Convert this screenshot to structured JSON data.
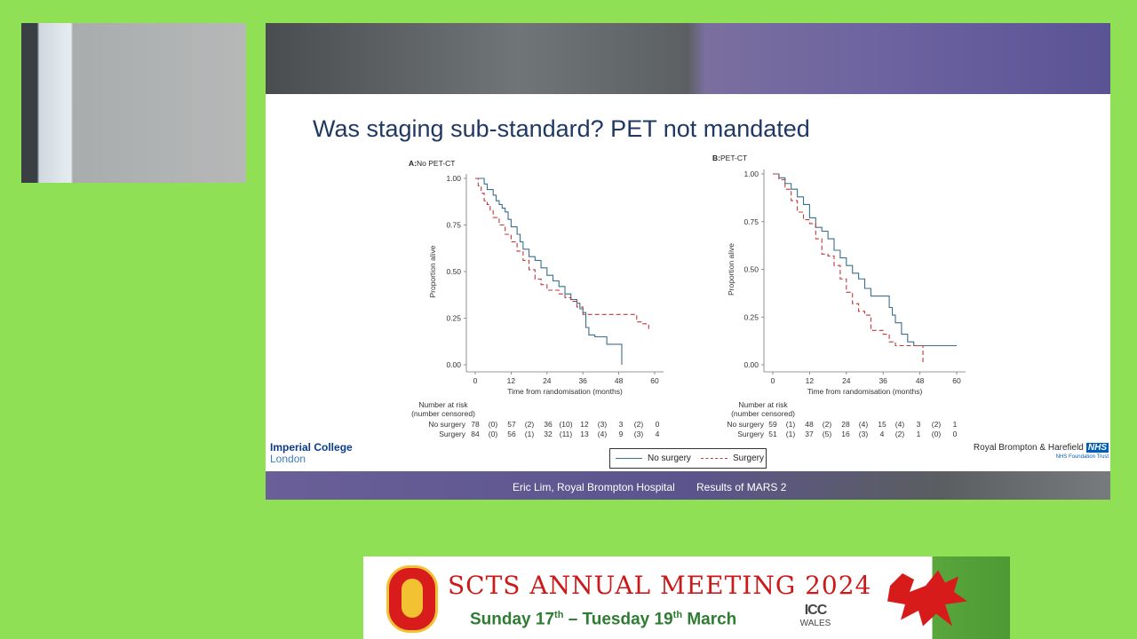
{
  "slide": {
    "title": "Was staging sub-standard? PET not mandated",
    "footer_presenter": "Eric Lim, Royal Brompton Hospital",
    "footer_title": "Results of MARS 2",
    "logo_left": [
      "Imperial College",
      "London"
    ],
    "logo_right": {
      "name": "Royal Brompton & Harefield",
      "badge": "NHS",
      "sub": "NHS Foundation Trust"
    }
  },
  "legend": [
    {
      "label": "No surgery",
      "color": "#3a6f8f",
      "style": "solid"
    },
    {
      "label": "Surgery",
      "color": "#c0393b",
      "style": "dashed"
    }
  ],
  "risk_table_label": [
    "Number at risk",
    "(number censored)"
  ],
  "chart_data": [
    {
      "type": "line",
      "title_letter": "A",
      "title": "No PET-CT",
      "xlabel": "Time from randomisation (months)",
      "ylabel": "Proportion alive",
      "xlim": [
        0,
        60
      ],
      "ylim": [
        0,
        1
      ],
      "xticks": [
        "0",
        "12",
        "24",
        "36",
        "48",
        "60"
      ],
      "yticks": [
        "0.00",
        "0.25",
        "0.50",
        "0.75",
        "1.00"
      ],
      "series": [
        {
          "name": "No surgery",
          "color": "#3a6f8f",
          "style": "solid",
          "x": [
            0,
            1,
            3,
            4,
            6,
            7,
            8,
            9,
            10,
            11,
            12,
            14,
            15,
            16,
            18,
            20,
            22,
            24,
            26,
            28,
            30,
            32,
            34,
            35,
            36,
            37,
            38,
            40,
            42,
            44,
            46,
            48,
            49
          ],
          "y": [
            1.0,
            1.0,
            0.97,
            0.94,
            0.91,
            0.88,
            0.86,
            0.84,
            0.82,
            0.78,
            0.74,
            0.7,
            0.66,
            0.62,
            0.58,
            0.56,
            0.52,
            0.48,
            0.45,
            0.42,
            0.38,
            0.35,
            0.33,
            0.3,
            0.28,
            0.2,
            0.16,
            0.15,
            0.15,
            0.11,
            0.11,
            0.11,
            0.0
          ]
        },
        {
          "name": "Surgery",
          "color": "#c0393b",
          "style": "dashed",
          "x": [
            0,
            1,
            2,
            3,
            4,
            5,
            6,
            8,
            10,
            12,
            14,
            16,
            18,
            20,
            22,
            24,
            26,
            28,
            30,
            32,
            34,
            36,
            40,
            44,
            48,
            52,
            54,
            56,
            58
          ],
          "y": [
            1.0,
            0.96,
            0.92,
            0.88,
            0.86,
            0.83,
            0.79,
            0.75,
            0.7,
            0.66,
            0.61,
            0.56,
            0.51,
            0.46,
            0.43,
            0.4,
            0.4,
            0.38,
            0.36,
            0.34,
            0.31,
            0.27,
            0.27,
            0.27,
            0.27,
            0.27,
            0.23,
            0.22,
            0.18
          ]
        }
      ],
      "risk_table": {
        "rows": [
          {
            "label": "No surgery",
            "cells": [
              "78",
              "(0)",
              "57",
              "(2)",
              "36",
              "(10)",
              "12",
              "(3)",
              "3",
              "(2)",
              "0"
            ]
          },
          {
            "label": "Surgery",
            "cells": [
              "84",
              "(0)",
              "56",
              "(1)",
              "32",
              "(11)",
              "13",
              "(4)",
              "9",
              "(3)",
              "4"
            ]
          }
        ]
      }
    },
    {
      "type": "line",
      "title_letter": "B",
      "title": "PET-CT",
      "xlabel": "Time from randomisation (months)",
      "ylabel": "Proportion alive",
      "xlim": [
        0,
        60
      ],
      "ylim": [
        0,
        1
      ],
      "xticks": [
        "0",
        "12",
        "24",
        "36",
        "48",
        "60"
      ],
      "yticks": [
        "0.00",
        "0.25",
        "0.50",
        "0.75",
        "1.00"
      ],
      "series": [
        {
          "name": "No surgery",
          "color": "#3a6f8f",
          "style": "solid",
          "x": [
            0,
            2,
            4,
            6,
            8,
            10,
            12,
            14,
            16,
            18,
            20,
            22,
            24,
            26,
            28,
            30,
            32,
            34,
            36,
            38,
            39,
            40,
            42,
            44,
            46,
            48,
            50,
            54,
            60
          ],
          "y": [
            1.0,
            0.98,
            0.95,
            0.92,
            0.88,
            0.84,
            0.77,
            0.72,
            0.7,
            0.66,
            0.6,
            0.56,
            0.52,
            0.48,
            0.45,
            0.4,
            0.36,
            0.36,
            0.36,
            0.3,
            0.26,
            0.22,
            0.16,
            0.12,
            0.1,
            0.1,
            0.1,
            0.1,
            0.1
          ]
        },
        {
          "name": "Surgery",
          "color": "#c0393b",
          "style": "dashed",
          "x": [
            0,
            2,
            4,
            6,
            8,
            10,
            12,
            14,
            16,
            18,
            20,
            22,
            24,
            26,
            28,
            30,
            32,
            34,
            36,
            38,
            40,
            42,
            44,
            46,
            48,
            49
          ],
          "y": [
            1.0,
            0.97,
            0.92,
            0.86,
            0.8,
            0.76,
            0.74,
            0.66,
            0.58,
            0.57,
            0.52,
            0.45,
            0.38,
            0.32,
            0.28,
            0.26,
            0.18,
            0.18,
            0.16,
            0.12,
            0.1,
            0.1,
            0.1,
            0.1,
            0.1,
            0.0
          ]
        }
      ],
      "risk_table": {
        "rows": [
          {
            "label": "No surgery",
            "cells": [
              "59",
              "(1)",
              "48",
              "(2)",
              "28",
              "(4)",
              "15",
              "(4)",
              "3",
              "(2)",
              "1"
            ]
          },
          {
            "label": "Surgery",
            "cells": [
              "51",
              "(1)",
              "37",
              "(5)",
              "16",
              "(3)",
              "4",
              "(2)",
              "1",
              "(0)",
              "0"
            ]
          }
        ]
      }
    }
  ],
  "banner": {
    "title": "SCTS ANNUAL MEETING 2024",
    "date_parts": [
      "Sunday 17",
      "th",
      " – Tuesday 19",
      "th",
      " March"
    ],
    "venue_logo": [
      "ICC",
      "WALES"
    ]
  }
}
